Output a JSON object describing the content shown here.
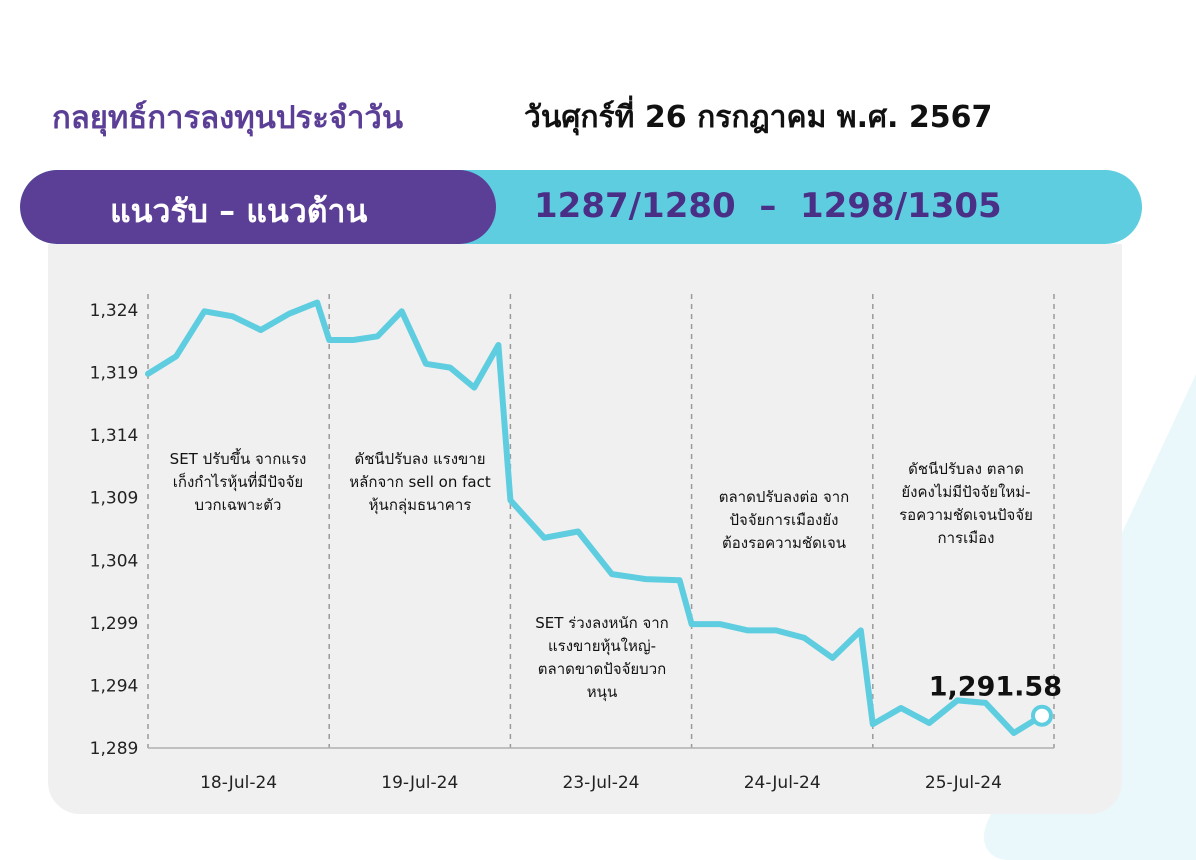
{
  "header": {
    "title": "กลยุทธ์การลงทุนประจำวัน",
    "date": "วันศุกร์ที่ 26 กรกฎาคม พ.ศ. 2567"
  },
  "levels": {
    "label": "แนวรับ – แนวต้าน",
    "value": "1287/1280  –  1298/1305"
  },
  "colors": {
    "accent_purple": "#5b3e96",
    "accent_cyan": "#5fcde0",
    "line": "#5fcde0"
  },
  "chart_data": {
    "type": "line",
    "ylim": [
      1289,
      1324
    ],
    "yticks": [
      "1,324",
      "1,319",
      "1,314",
      "1,309",
      "1,304",
      "1,299",
      "1,294",
      "1,289"
    ],
    "ytick_values": [
      1324,
      1319,
      1314,
      1309,
      1304,
      1299,
      1294,
      1289
    ],
    "categories": [
      "18-Jul-24",
      "19-Jul-24",
      "23-Jul-24",
      "24-Jul-24",
      "25-Jul-24"
    ],
    "grid": "vertical dashed separators between days",
    "series": [
      {
        "values": [
          [
            1318.9,
            1320.3,
            1323.9,
            1323.5,
            1322.4,
            1323.7,
            1324.6
          ],
          [
            1321.6,
            1321.6,
            1321.9,
            1323.9,
            1319.7,
            1319.4,
            1317.8,
            1321.2
          ],
          [
            1308.8,
            1305.8,
            1306.3,
            1302.9,
            1302.5,
            1302.4
          ],
          [
            1298.9,
            1298.9,
            1298.4,
            1298.4,
            1297.8,
            1296.2,
            1298.4
          ],
          [
            1290.9,
            1292.2,
            1291.0,
            1292.8,
            1292.6,
            1290.2,
            1291.58
          ]
        ]
      }
    ],
    "last_value_label": "1,291.58",
    "annotations": [
      [
        "SET ปรับขึ้น จากแรง",
        "เก็งกำไรหุ้นที่มีปัจจัย",
        "บวกเฉพาะตัว"
      ],
      [
        "ดัชนีปรับลง แรงขาย",
        "หลักจาก sell on fact",
        "หุ้นกลุ่มธนาคาร"
      ],
      [
        "SET ร่วงลงหนัก จาก",
        "แรงขายหุ้นใหญ่-",
        "ตลาดขาดปัจจัยบวก",
        "หนุน"
      ],
      [
        "ตลาดปรับลงต่อ จาก",
        "ปัจจัยการเมืองยัง",
        "ต้องรอความชัดเจน"
      ],
      [
        "ดัชนีปรับลง ตลาด",
        "ยังคงไม่มีปัจจัยใหม่-",
        "รอความชัดเจนปัจจัย",
        "การเมือง"
      ]
    ]
  }
}
